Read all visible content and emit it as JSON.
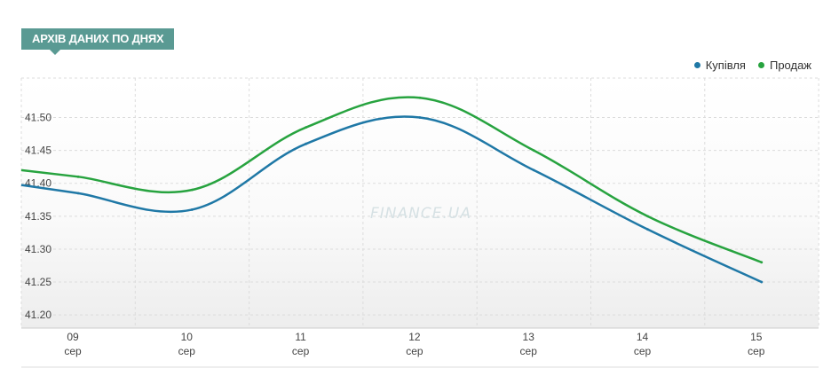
{
  "header": {
    "title": "АРХІВ ДАНИХ ПО ДНЯХ"
  },
  "watermark": "FINANCE.UA",
  "colors": {
    "buy": "#1f78a6",
    "sell": "#27a33f",
    "title_bg": "#5a9a93"
  },
  "chart_data": {
    "type": "line",
    "title": "АРХІВ ДАНИХ ПО ДНЯХ",
    "x": [
      "09 сер",
      "10 сер",
      "11 сер",
      "12 сер",
      "13 сер",
      "14 сер",
      "15 сер"
    ],
    "x_tick_labels": [
      {
        "day": "09",
        "month": "сер"
      },
      {
        "day": "10",
        "month": "сер"
      },
      {
        "day": "11",
        "month": "сер"
      },
      {
        "day": "12",
        "month": "сер"
      },
      {
        "day": "13",
        "month": "сер"
      },
      {
        "day": "14",
        "month": "сер"
      },
      {
        "day": "15",
        "month": "сер"
      }
    ],
    "y_ticks": [
      "41.20",
      "41.25",
      "41.30",
      "41.35",
      "41.40",
      "41.45",
      "41.50"
    ],
    "ylim": [
      41.18,
      41.56
    ],
    "series": [
      {
        "name": "Купівля",
        "color": "#1f78a6",
        "values": [
          41.385,
          41.36,
          41.46,
          41.5,
          41.42,
          41.33,
          41.25
        ]
      },
      {
        "name": "Продаж",
        "color": "#27a33f",
        "values": [
          41.41,
          41.39,
          41.485,
          41.53,
          41.45,
          41.35,
          41.28
        ]
      }
    ],
    "grid": true,
    "legend": "top-right"
  }
}
